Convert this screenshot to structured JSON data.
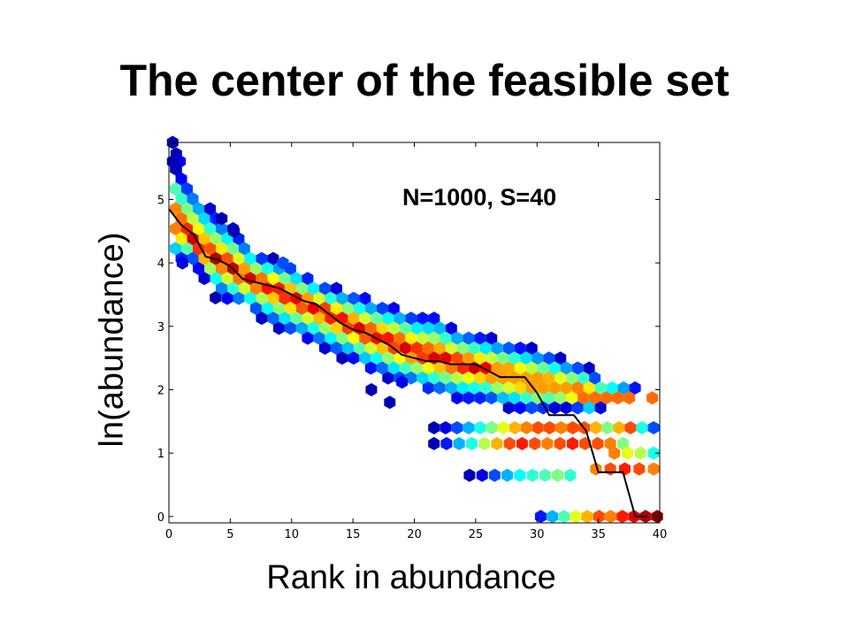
{
  "slide": {
    "title": "The center of the feasible set"
  },
  "chart_data": {
    "type": "heatmap",
    "subtype": "hexbin density with line overlay",
    "annotation": "N=1000, S=40",
    "xlabel": "Rank in abundance",
    "ylabel": "ln(abundance)",
    "xlim": [
      0,
      40
    ],
    "ylim": [
      -0.1,
      5.9
    ],
    "xticks": [
      0,
      5,
      10,
      15,
      20,
      25,
      30,
      35,
      40
    ],
    "yticks": [
      0,
      1,
      2,
      3,
      4,
      5
    ],
    "colormap": "jet",
    "colors": {
      "low_density": "#00008f",
      "mid_density": "#40ffbf",
      "high_density": "#ff4000",
      "center_line": "#000000"
    },
    "center_line": {
      "x": [
        0,
        1,
        2,
        3,
        4,
        5,
        6,
        7,
        8,
        9,
        10,
        11,
        12,
        13,
        14,
        15,
        16,
        17,
        18,
        19,
        20,
        21,
        22,
        23,
        24,
        25,
        26,
        27,
        28,
        29,
        30,
        31,
        32,
        33,
        34,
        35,
        36,
        37,
        38,
        39
      ],
      "y": [
        4.85,
        4.6,
        4.45,
        4.1,
        4.05,
        3.95,
        3.75,
        3.7,
        3.65,
        3.6,
        3.5,
        3.4,
        3.35,
        3.2,
        3.05,
        2.95,
        2.9,
        2.8,
        2.7,
        2.55,
        2.5,
        2.45,
        2.45,
        2.4,
        2.4,
        2.4,
        2.3,
        2.2,
        2.2,
        2.2,
        1.95,
        1.6,
        1.6,
        1.6,
        1.35,
        0.7,
        0.7,
        0.7,
        0.0,
        0.0
      ]
    },
    "density_band": {
      "x": [
        0,
        1,
        2,
        3,
        4,
        5,
        6,
        7,
        8,
        9,
        10,
        11,
        12,
        13,
        14,
        15,
        16,
        17,
        18,
        19,
        20,
        21,
        22,
        23,
        24,
        25,
        26,
        27,
        28,
        29,
        30,
        31,
        32,
        33,
        34,
        35,
        36,
        37,
        38,
        39,
        40
      ],
      "lower": [
        4.0,
        4.0,
        4.0,
        3.7,
        3.5,
        3.35,
        3.3,
        3.2,
        3.05,
        2.95,
        2.85,
        2.8,
        2.7,
        2.6,
        2.5,
        2.45,
        2.3,
        2.25,
        2.15,
        2.05,
        2.05,
        1.95,
        1.9,
        1.85,
        1.8,
        1.8,
        1.8,
        1.7,
        1.7,
        1.65,
        1.6,
        1.7,
        1.7,
        1.7,
        1.6,
        1.7,
        1.75,
        1.8,
        1.9,
        1.85,
        1.8
      ],
      "upper": [
        5.9,
        5.4,
        5.2,
        4.95,
        4.75,
        4.6,
        4.4,
        4.2,
        4.1,
        4.05,
        4.0,
        3.85,
        3.75,
        3.65,
        3.6,
        3.55,
        3.5,
        3.4,
        3.35,
        3.3,
        3.2,
        3.2,
        3.2,
        3.0,
        2.95,
        2.9,
        2.85,
        2.8,
        2.75,
        2.7,
        2.65,
        2.6,
        2.5,
        2.45,
        2.4,
        2.2,
        2.15,
        2.1,
        2.05,
        2.0,
        1.95
      ],
      "peak": [
        4.8,
        4.55,
        4.35,
        4.15,
        4.05,
        3.95,
        3.8,
        3.7,
        3.65,
        3.55,
        3.45,
        3.35,
        3.3,
        3.2,
        3.1,
        3.0,
        2.9,
        2.85,
        2.75,
        2.7,
        2.6,
        2.55,
        2.5,
        2.45,
        2.4,
        2.35,
        2.3,
        2.25,
        2.2,
        2.15,
        2.1,
        2.05,
        2.0,
        1.95,
        1.9,
        1.85,
        1.85,
        1.85,
        1.85,
        1.85,
        1.85
      ]
    },
    "outlier_hexes": [
      {
        "x": 0.3,
        "y": 5.9,
        "level": 0.05
      },
      {
        "x": 0.6,
        "y": 5.72,
        "level": 0.05
      },
      {
        "x": 0.9,
        "y": 5.6,
        "level": 0.1
      },
      {
        "x": 0.3,
        "y": 5.6,
        "level": 0.05
      },
      {
        "x": 0.6,
        "y": 5.48,
        "level": 0.05
      },
      {
        "x": 4.3,
        "y": 4.7,
        "level": 0.05
      },
      {
        "x": 5.3,
        "y": 4.5,
        "level": 0.05
      },
      {
        "x": 1.1,
        "y": 4.0,
        "level": 0.1
      },
      {
        "x": 3.8,
        "y": 3.45,
        "level": 0.05
      },
      {
        "x": 9.3,
        "y": 4.0,
        "level": 0.2
      },
      {
        "x": 19.0,
        "y": 2.12,
        "level": 0.1
      },
      {
        "x": 18.0,
        "y": 1.8,
        "level": 0.05
      },
      {
        "x": 16.5,
        "y": 2.0,
        "level": 0.05
      }
    ],
    "discrete_rows": [
      {
        "y": 1.4,
        "x_from": 21.6,
        "x_to": 39.5,
        "levels": [
          0.05,
          0.1,
          0.2,
          0.3,
          0.4,
          0.5,
          0.6,
          0.7,
          0.75,
          0.8,
          0.8,
          0.75,
          0.8,
          0.8,
          0.7,
          0.5,
          0.7,
          0.8,
          0.4,
          0.2
        ]
      },
      {
        "y": 1.15,
        "x_from": 21.6,
        "x_to": 37.0,
        "levels": [
          0.05,
          0.15,
          0.3,
          0.4,
          0.55,
          0.7,
          0.8,
          0.85,
          0.8,
          0.75,
          0.8,
          0.85,
          0.8,
          0.8,
          0.75,
          0.5
        ]
      },
      {
        "y": 1.0,
        "x_from": 36.3,
        "x_to": 39.5,
        "levels": [
          0.75,
          0.6,
          0.55,
          0.4
        ]
      },
      {
        "y": 0.75,
        "x_from": 34.8,
        "x_to": 39.5,
        "levels": [
          0.75,
          0.8,
          0.85,
          0.8,
          0.75
        ]
      },
      {
        "y": 0.65,
        "x_from": 24.5,
        "x_to": 32.7,
        "levels": [
          0.05,
          0.1,
          0.2,
          0.3,
          0.38,
          0.42,
          0.45,
          0.5,
          0.42
        ]
      },
      {
        "y": 0.0,
        "x_from": 30.3,
        "x_to": 39.8,
        "levels": [
          0.15,
          0.3,
          0.45,
          0.6,
          0.7,
          0.8,
          0.75,
          0.85,
          0.9,
          0.95,
          1.0
        ]
      }
    ]
  }
}
